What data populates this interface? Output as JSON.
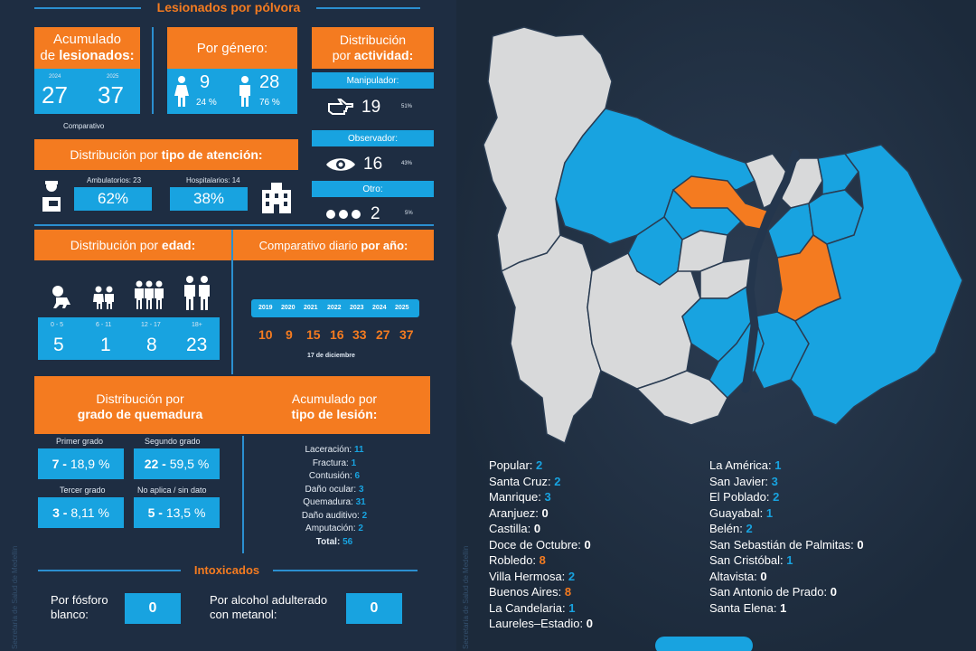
{
  "header": {
    "title": "Lesionados por pólvora"
  },
  "accumulated": {
    "title_line1": "Acumulado",
    "title_line2_prefix": "de ",
    "title_line2_bold": "lesionados:",
    "year_a": "2024",
    "year_b": "2025",
    "value_a": "27",
    "value_b": "37",
    "caption": "Comparativo"
  },
  "gender": {
    "title": "Por género:",
    "female_value": "9",
    "female_pct": "24 %",
    "male_value": "28",
    "male_pct": "76 %"
  },
  "activity": {
    "title_line1": "Distribución",
    "title_line2_prefix": "por ",
    "title_line2_bold": "actividad:",
    "items": [
      {
        "label": "Manipulador:",
        "value": "19",
        "pct": "51%",
        "icon": "pointing-hand-icon"
      },
      {
        "label": "Observador:",
        "value": "16",
        "pct": "43%",
        "icon": "eye-icon"
      },
      {
        "label": "Otro:",
        "value": "2",
        "pct": "5%",
        "icon": "dots-icon"
      }
    ]
  },
  "attention": {
    "title_prefix": "Distribución por ",
    "title_bold": "tipo de atención:",
    "amb_label": "Ambulatorios: 23",
    "amb_pct": "62%",
    "hosp_label": "Hospitalarios: 14",
    "hosp_pct": "38%"
  },
  "age": {
    "title_prefix": "Distribución por ",
    "title_bold": "edad:",
    "groups": [
      {
        "range": "0 - 5",
        "value": "5"
      },
      {
        "range": "6 - 11",
        "value": "1"
      },
      {
        "range": "12 - 17",
        "value": "8"
      },
      {
        "range": "18+",
        "value": "23"
      }
    ]
  },
  "daily": {
    "title_prefix": "Comparativo diario ",
    "title_bold": "por año:",
    "years": [
      "2019",
      "2020",
      "2021",
      "2022",
      "2023",
      "2024",
      "2025"
    ],
    "values": [
      "10",
      "9",
      "15",
      "16",
      "33",
      "27",
      "37"
    ],
    "caption": "17 de diciembre"
  },
  "burn": {
    "title_line1": "Distribución por",
    "title_line2": "grado de quemadura",
    "grades": [
      {
        "label": "Primer grado",
        "count": "7",
        "pct": "18,9 %"
      },
      {
        "label": "Segundo grado",
        "count": "22",
        "pct": "59,5 %"
      },
      {
        "label": "Tercer grado",
        "count": "3",
        "pct": "8,11 %"
      },
      {
        "label": "No aplica / sin dato",
        "count": "5",
        "pct": "13,5 %"
      }
    ]
  },
  "lesion": {
    "title_line1": "Acumulado por",
    "title_line2": "tipo de lesión:",
    "items": [
      {
        "label": "Laceración:",
        "value": "11"
      },
      {
        "label": "Fractura:",
        "value": "1"
      },
      {
        "label": "Contusión:",
        "value": "6"
      },
      {
        "label": "Daño ocular:",
        "value": "3"
      },
      {
        "label": "Quemadura:",
        "value": "31"
      },
      {
        "label": "Daño auditivo:",
        "value": "2"
      },
      {
        "label": "Amputación:",
        "value": "2"
      }
    ],
    "total_label": "Total:",
    "total_value": "56"
  },
  "intox": {
    "title": "Intoxicados",
    "white_label_1": "Por fósforo",
    "white_label_2": "blanco:",
    "white_value": "0",
    "meth_label_1": "Por alcohol adulterado",
    "meth_label_2": "con metanol:",
    "meth_value": "0"
  },
  "side_text": "Secretaría de Salud de Medellín",
  "communes_left": [
    {
      "name": "Popular:",
      "value": "2"
    },
    {
      "name": "Santa Cruz:",
      "value": "2"
    },
    {
      "name": "Manrique:",
      "value": "3"
    },
    {
      "name": "Aranjuez:",
      "value": "0"
    },
    {
      "name": "Castilla:",
      "value": "0"
    },
    {
      "name": "Doce de Octubre:",
      "value": "0"
    },
    {
      "name": "Robledo:",
      "value": "8"
    },
    {
      "name": "Villa Hermosa:",
      "value": "2"
    },
    {
      "name": "Buenos Aires:",
      "value": "8"
    },
    {
      "name": "La Candelaria:",
      "value": "1"
    },
    {
      "name": "Laureles–Estadio:",
      "value": "0"
    }
  ],
  "communes_right": [
    {
      "name": "La América:",
      "value": "1"
    },
    {
      "name": "San Javier:",
      "value": "3"
    },
    {
      "name": "El Poblado:",
      "value": "2"
    },
    {
      "name": "Guayabal:",
      "value": "1"
    },
    {
      "name": "Belén:",
      "value": "2"
    },
    {
      "name": "San Sebastián de Palmitas:",
      "value": "0"
    },
    {
      "name": "San Cristóbal:",
      "value": "1"
    },
    {
      "name": "Altavista:",
      "value": "0"
    },
    {
      "name": "San Antonio de Prado:",
      "value": "0"
    },
    {
      "name": "Santa Elena:",
      "value": "1"
    }
  ],
  "colors": {
    "orange": "#f47b20",
    "cyan": "#18a3e0",
    "gray": "#d9dadb",
    "river": "#24364d"
  }
}
